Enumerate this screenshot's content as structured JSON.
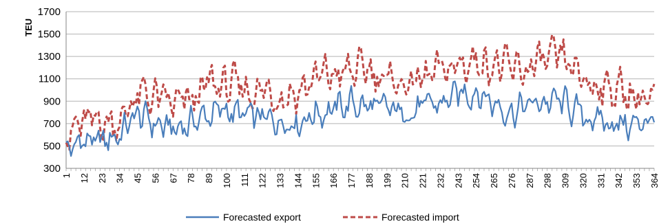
{
  "chart_data": {
    "type": "line",
    "title": "",
    "xlabel": "",
    "ylabel": "TEU",
    "ylim": [
      300,
      1700
    ],
    "yticks": [
      300,
      500,
      700,
      900,
      1100,
      1300,
      1500,
      1700
    ],
    "xlim": [
      1,
      364
    ],
    "xticks": [
      1,
      12,
      23,
      34,
      45,
      56,
      67,
      78,
      89,
      100,
      111,
      122,
      133,
      144,
      155,
      166,
      177,
      188,
      199,
      210,
      221,
      232,
      243,
      254,
      265,
      276,
      287,
      298,
      309,
      320,
      331,
      342,
      353,
      364
    ],
    "grid": "horizontal",
    "legend_position": "bottom",
    "series": [
      {
        "name": "Forecasted export",
        "color": "#4a7ebb",
        "style": "solid",
        "x": [
          1,
          12,
          23,
          34,
          45,
          56,
          67,
          78,
          89,
          100,
          111,
          122,
          133,
          144,
          155,
          166,
          177,
          188,
          199,
          210,
          221,
          232,
          243,
          254,
          265,
          276,
          287,
          298,
          309,
          320,
          331,
          342,
          353,
          364
        ],
        "values": [
          440,
          560,
          520,
          610,
          780,
          700,
          640,
          710,
          780,
          820,
          760,
          740,
          730,
          720,
          800,
          830,
          880,
          850,
          820,
          800,
          840,
          880,
          950,
          1000,
          880,
          820,
          860,
          900,
          880,
          760,
          720,
          700,
          680,
          780
        ]
      },
      {
        "name": "Forecasted import",
        "color": "#be4b48",
        "style": "dashed",
        "x": [
          1,
          12,
          23,
          34,
          45,
          56,
          67,
          78,
          89,
          100,
          111,
          122,
          133,
          144,
          155,
          166,
          177,
          188,
          199,
          210,
          221,
          232,
          243,
          254,
          265,
          276,
          287,
          298,
          309,
          320,
          331,
          342,
          353,
          364
        ],
        "values": [
          600,
          700,
          720,
          720,
          950,
          930,
          860,
          880,
          1050,
          1040,
          1000,
          1000,
          960,
          980,
          1100,
          1130,
          1160,
          1180,
          1100,
          1050,
          1100,
          1150,
          1220,
          1270,
          1250,
          1150,
          1200,
          1260,
          1250,
          1080,
          1050,
          1000,
          960,
          880
        ]
      }
    ]
  }
}
